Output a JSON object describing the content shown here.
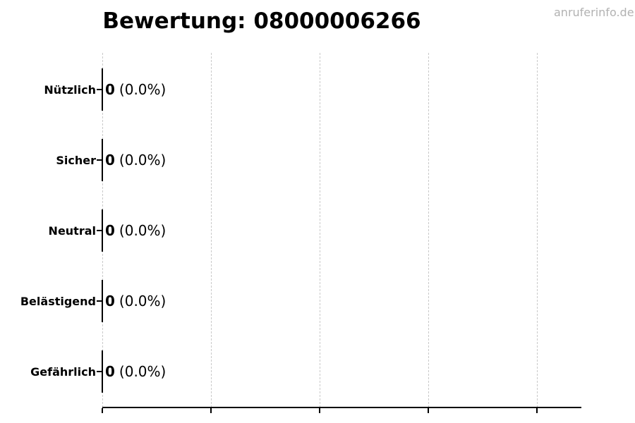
{
  "chart_data": {
    "type": "bar",
    "orientation": "horizontal",
    "title": "Bewertung: 08000006266",
    "categories": [
      "Nützlich",
      "Sicher",
      "Neutral",
      "Belästigend",
      "Gefährlich"
    ],
    "values": [
      0,
      0,
      0,
      0,
      0
    ],
    "percentages": [
      0.0,
      0.0,
      0.0,
      0.0,
      0.0
    ],
    "value_labels": [
      "0 (0.0%)",
      "0 (0.0%)",
      "0 (0.0%)",
      "0 (0.0%)",
      "0 (0.0%)"
    ],
    "xlim": [
      0,
      4.4
    ],
    "grid": "vertical-dashed",
    "legend": "none",
    "bar_edge_color": "#000000"
  },
  "rows": [
    {
      "label": "Nützlich",
      "count": "0",
      "pct": "(0.0%)"
    },
    {
      "label": "Sicher",
      "count": "0",
      "pct": "(0.0%)"
    },
    {
      "label": "Neutral",
      "count": "0",
      "pct": "(0.0%)"
    },
    {
      "label": "Belästigend",
      "count": "0",
      "pct": "(0.0%)"
    },
    {
      "label": "Gefährlich",
      "count": "0",
      "pct": "(0.0%)"
    }
  ],
  "watermark": "anruferinfo.de",
  "colors": {
    "background": "#ffffff",
    "grid": "#c9c9c9",
    "axis": "#000000",
    "text": "#000000",
    "watermark": "#b2b2b2"
  }
}
